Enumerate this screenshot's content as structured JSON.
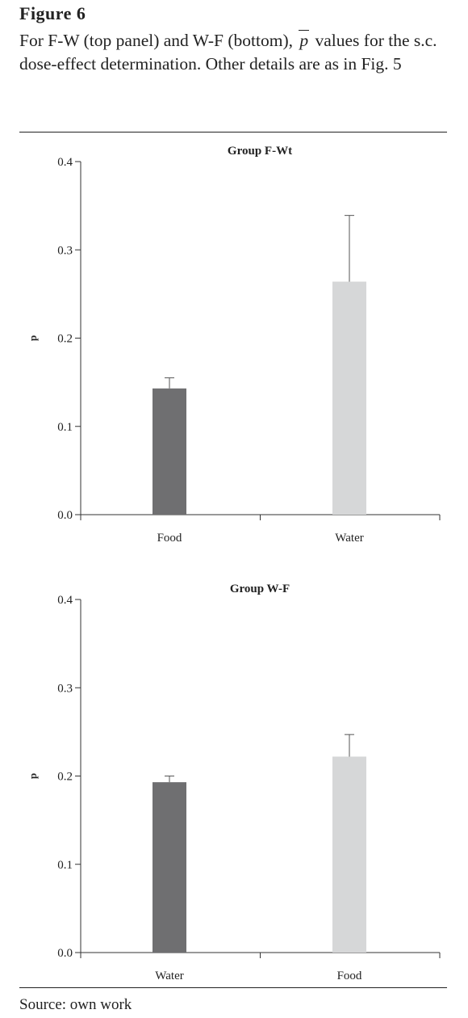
{
  "figure": {
    "label": "Figure 6",
    "caption_before": "For F-W (top panel) and W-F (bottom),",
    "caption_symbol": "p",
    "caption_after": "values for the s.c. dose-effect determination. Other details are as in Fig. 5",
    "source": "Source: own work"
  },
  "colors": {
    "dark_bar": "#6f6f71",
    "light_bar": "#d6d7d8",
    "axis": "#333333"
  },
  "chart_data": [
    {
      "type": "bar",
      "title": "Group F-Wt",
      "ylabel": "p",
      "ylim": [
        0,
        0.4
      ],
      "yticks": [
        "0.0",
        "0.1",
        "0.2",
        "0.3",
        "0.4"
      ],
      "categories": [
        "Food",
        "Water"
      ],
      "values": [
        0.143,
        0.264
      ],
      "errors": [
        0.012,
        0.075
      ],
      "bar_colors": [
        "dark",
        "light"
      ]
    },
    {
      "type": "bar",
      "title": "Group W-F",
      "ylabel": "p",
      "ylim": [
        0,
        0.4
      ],
      "yticks": [
        "0.0",
        "0.1",
        "0.2",
        "0.3",
        "0.4"
      ],
      "categories": [
        "Water",
        "Food"
      ],
      "values": [
        0.193,
        0.222
      ],
      "errors": [
        0.007,
        0.025
      ],
      "bar_colors": [
        "dark",
        "light"
      ]
    }
  ]
}
